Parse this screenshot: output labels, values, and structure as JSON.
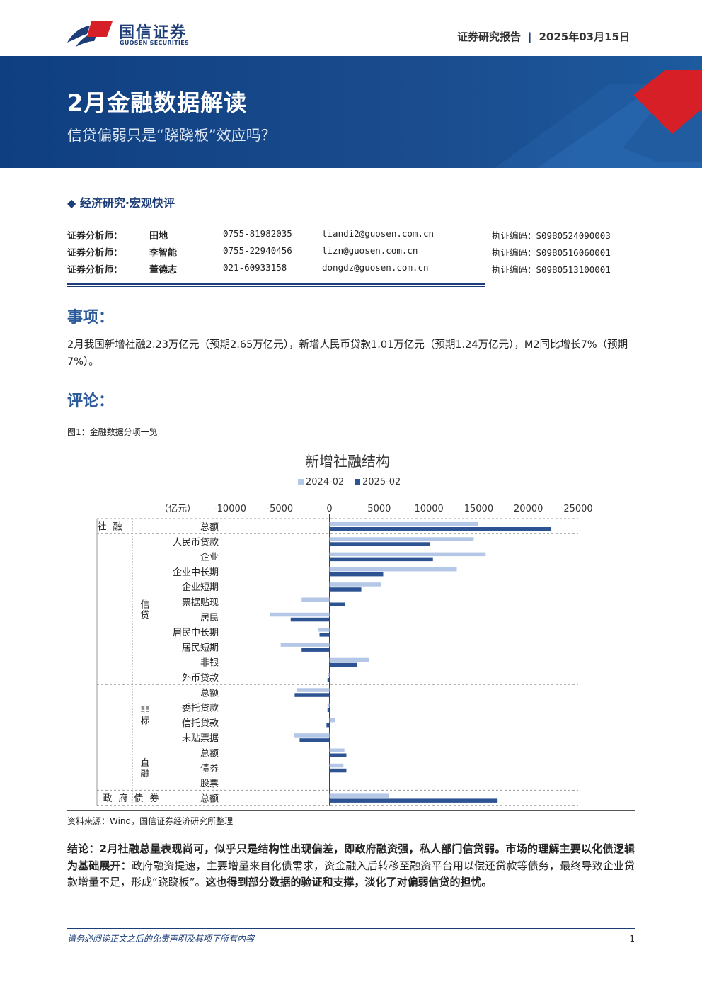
{
  "header": {
    "brand_cn": "国信证券",
    "brand_en": "GUOSEN SECURITIES",
    "report_type": "证券研究报告",
    "separator": "|",
    "date": "2025年03月15日"
  },
  "banner": {
    "title": "2月金融数据解读",
    "subtitle": "信贷偏弱只是“跷跷板”效应吗？"
  },
  "section_tag": "◆ 经济研究·宏观快评",
  "analysts": [
    {
      "label": "证券分析师：",
      "name": "田地",
      "phone": "0755-81982035",
      "email": "tiandi2@guosen.com.cn",
      "cert": "执证编码：S0980524090003"
    },
    {
      "label": "证券分析师：",
      "name": "李智能",
      "phone": "0755-22940456",
      "email": "lizn@guosen.com.cn",
      "cert": "执证编码：S0980516060001"
    },
    {
      "label": "证券分析师：",
      "name": "董德志",
      "phone": "021-60933158",
      "email": "dongdz@guosen.com.cn",
      "cert": "执证编码：S0980513100001"
    }
  ],
  "event": {
    "heading": "事项：",
    "text": "2月我国新增社融2.23万亿元（预期2.65万亿元），新增人民币贷款1.01万亿元（预期1.24万亿元），M2同比增长7%（预期7%）。"
  },
  "comment": {
    "heading": "评论：",
    "figure_label": "图1：金融数据分项一览",
    "source": "资料来源：Wind，国信证券经济研究所整理"
  },
  "chart_data": {
    "type": "bar",
    "orientation": "horizontal",
    "title": "新增社融结构",
    "unit_label": "（亿元）",
    "xlim": [
      -10000,
      25000
    ],
    "xticks": [
      "-10000",
      "-5000",
      "0",
      "5000",
      "10000",
      "15000",
      "20000",
      "25000"
    ],
    "grid": false,
    "legend_position": "top",
    "groups": [
      {
        "name": "社融",
        "rows": [
          0
        ]
      },
      {
        "name": "信贷",
        "rows": [
          1,
          2,
          3,
          4,
          5,
          6,
          7,
          8,
          9,
          10
        ]
      },
      {
        "name": "非标",
        "rows": [
          11,
          12,
          13,
          14
        ]
      },
      {
        "name": "直融",
        "rows": [
          15,
          16,
          17
        ]
      },
      {
        "name": "政府债券",
        "rows": [
          18
        ]
      }
    ],
    "categories": [
      "总额",
      "人民币贷款",
      "企业",
      "企业中长期",
      "企业短期",
      "票据贴现",
      "居民",
      "居民中长期",
      "居民短期",
      "非银",
      "外币贷款",
      "总额",
      "委托贷款",
      "信托贷款",
      "未贴票据",
      "总额",
      "债券",
      "股票",
      "总额"
    ],
    "series": [
      {
        "name": "2024-02",
        "color": "#b4c7e7",
        "values": [
          14900,
          14500,
          15700,
          12800,
          5200,
          -2800,
          -6000,
          -1100,
          -4900,
          4000,
          -100,
          -3300,
          -200,
          600,
          -3600,
          1500,
          1400,
          0,
          6000
        ]
      },
      {
        "name": "2025-02",
        "color": "#2e5393",
        "values": [
          22300,
          10100,
          10400,
          5400,
          3200,
          1600,
          -3900,
          -1000,
          -2800,
          2800,
          -200,
          -3500,
          -200,
          -300,
          -3000,
          1700,
          1700,
          0,
          16900
        ]
      }
    ]
  },
  "conclusion": {
    "bold1": "结论：2月社融总量表现尚可，似乎只是结构性出现偏差，即政府融资强，私人部门信贷弱。市场的理解主要以化债逻辑为基础展开：",
    "normal": "政府融资提速，主要增量来自化债需求，资金融入后转移至融资平台用以偿还贷款等债务，最终导致企业贷款增量不足，形成“跷跷板”。",
    "bold2": "这也得到部分数据的验证和支撑，淡化了对偏弱信贷的担忧。"
  },
  "footer": {
    "disclaimer": "请务必阅读正文之后的免责声明及其项下所有内容",
    "page": "1"
  },
  "colors": {
    "brand_blue": "#1c3d77",
    "heading_blue": "#2c5b9c",
    "accent_red": "#d61f26"
  }
}
